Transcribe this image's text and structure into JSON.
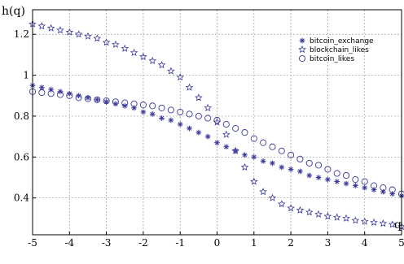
{
  "chart_data": {
    "type": "scatter",
    "xlabel": "q",
    "ylabel": "h(q)",
    "xlim": [
      -5,
      5
    ],
    "ylim": [
      0.22,
      1.32
    ],
    "xticks": [
      -5,
      -4,
      -3,
      -2,
      -1,
      0,
      1,
      2,
      3,
      4,
      5
    ],
    "yticks": [
      0.4,
      0.6,
      0.8,
      1,
      1.2
    ],
    "grid": true,
    "legend": "top-right",
    "color": "#3a3a9a",
    "series": [
      {
        "name": "bitcoin_exchange",
        "marker": "asterisk",
        "x": [
          -5,
          -4.75,
          -4.5,
          -4.25,
          -4,
          -3.75,
          -3.5,
          -3.25,
          -3,
          -2.75,
          -2.5,
          -2.25,
          -2,
          -1.75,
          -1.5,
          -1.25,
          -1,
          -0.75,
          -0.5,
          -0.25,
          0,
          0.25,
          0.5,
          0.75,
          1,
          1.25,
          1.5,
          1.75,
          2,
          2.25,
          2.5,
          2.75,
          3,
          3.25,
          3.5,
          3.75,
          4,
          4.25,
          4.5,
          4.75,
          5
        ],
        "y": [
          0.95,
          0.94,
          0.93,
          0.92,
          0.91,
          0.9,
          0.89,
          0.88,
          0.87,
          0.86,
          0.85,
          0.84,
          0.82,
          0.81,
          0.79,
          0.78,
          0.76,
          0.74,
          0.72,
          0.7,
          0.67,
          0.65,
          0.63,
          0.61,
          0.6,
          0.58,
          0.57,
          0.55,
          0.54,
          0.53,
          0.51,
          0.5,
          0.49,
          0.48,
          0.47,
          0.46,
          0.45,
          0.44,
          0.43,
          0.42,
          0.41
        ]
      },
      {
        "name": "blockchain_likes",
        "marker": "star",
        "x": [
          -5,
          -4.75,
          -4.5,
          -4.25,
          -4,
          -3.75,
          -3.5,
          -3.25,
          -3,
          -2.75,
          -2.5,
          -2.25,
          -2,
          -1.75,
          -1.5,
          -1.25,
          -1,
          -0.75,
          -0.5,
          -0.25,
          0,
          0.25,
          0.5,
          0.75,
          1,
          1.25,
          1.5,
          1.75,
          2,
          2.25,
          2.5,
          2.75,
          3,
          3.25,
          3.5,
          3.75,
          4,
          4.25,
          4.5,
          4.75,
          5
        ],
        "y": [
          1.25,
          1.24,
          1.23,
          1.22,
          1.21,
          1.2,
          1.19,
          1.18,
          1.16,
          1.15,
          1.13,
          1.11,
          1.09,
          1.07,
          1.05,
          1.02,
          0.99,
          0.94,
          0.89,
          0.84,
          0.77,
          0.71,
          0.63,
          0.55,
          0.48,
          0.43,
          0.4,
          0.37,
          0.35,
          0.34,
          0.33,
          0.32,
          0.31,
          0.305,
          0.3,
          0.29,
          0.285,
          0.28,
          0.275,
          0.27,
          0.26
        ]
      },
      {
        "name": "bitcoin_likes",
        "marker": "circle",
        "x": [
          -5,
          -4.75,
          -4.5,
          -4.25,
          -4,
          -3.75,
          -3.5,
          -3.25,
          -3,
          -2.75,
          -2.5,
          -2.25,
          -2,
          -1.75,
          -1.5,
          -1.25,
          -1,
          -0.75,
          -0.5,
          -0.25,
          0,
          0.25,
          0.5,
          0.75,
          1,
          1.25,
          1.5,
          1.75,
          2,
          2.25,
          2.5,
          2.75,
          3,
          3.25,
          3.5,
          3.75,
          4,
          4.25,
          4.5,
          4.75,
          5
        ],
        "y": [
          0.92,
          0.915,
          0.91,
          0.905,
          0.9,
          0.89,
          0.885,
          0.88,
          0.875,
          0.87,
          0.865,
          0.86,
          0.855,
          0.85,
          0.84,
          0.83,
          0.82,
          0.81,
          0.8,
          0.79,
          0.78,
          0.76,
          0.74,
          0.72,
          0.69,
          0.67,
          0.65,
          0.63,
          0.61,
          0.59,
          0.57,
          0.56,
          0.54,
          0.52,
          0.51,
          0.49,
          0.48,
          0.46,
          0.45,
          0.44,
          0.42
        ]
      }
    ]
  }
}
